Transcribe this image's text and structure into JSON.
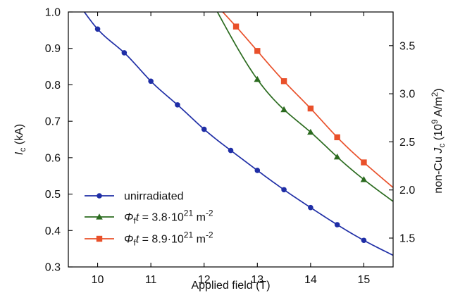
{
  "chart_data": {
    "type": "line",
    "x_axis": {
      "label": "Applied field (T)",
      "range": [
        9.45,
        15.55
      ],
      "ticks": [
        10,
        11,
        12,
        13,
        14,
        15
      ]
    },
    "y_left_axis": {
      "label_parts": {
        "base": "I",
        "sub": "c",
        "suffix": " (kA)"
      },
      "range": [
        0.3,
        1.0
      ],
      "ticks": [
        0.3,
        0.4,
        0.5,
        0.6,
        0.7,
        0.8,
        0.9,
        1.0
      ],
      "tick_labels": [
        "0.3",
        "0.4",
        "0.5",
        "0.6",
        "0.7",
        "0.8",
        "0.9",
        "1.0"
      ]
    },
    "y_right_axis": {
      "label_parts": {
        "prefix": "non-Cu ",
        "base": "J",
        "sub": "c",
        "unit_pre": " (10",
        "unit_sup": "9",
        "unit_mid": " A/m",
        "unit_sup2": "2",
        "unit_post": ")"
      },
      "range": [
        1.2,
        3.85
      ],
      "ticks": [
        1.5,
        2.0,
        2.5,
        3.0,
        3.5
      ],
      "tick_labels": [
        "1.5",
        "2.0",
        "2.5",
        "3.0",
        "3.5"
      ]
    },
    "series": [
      {
        "name": "unirradiated",
        "legend": {
          "base": "unirradiated"
        },
        "color": "#1f2ea6",
        "marker": "circle",
        "x": [
          10.0,
          10.5,
          11.0,
          11.5,
          12.0,
          12.5,
          13.0,
          13.5,
          14.0,
          14.5,
          15.0
        ],
        "y": [
          0.953,
          0.888,
          0.81,
          0.745,
          0.678,
          0.62,
          0.565,
          0.512,
          0.463,
          0.416,
          0.373
        ],
        "fit": {
          "x_start": 9.75,
          "x_end": 15.55,
          "y_start": 1.0,
          "y_end": 0.332
        }
      },
      {
        "name": "Φft = 3.8·10^21 m^-2",
        "legend": {
          "phi": "Φ",
          "phi_sub": "f",
          "t": "t",
          "eq": " = 3.8·10",
          "exp": "21",
          "unit": " m",
          "unit_exp": "-2"
        },
        "color": "#2b6b1f",
        "marker": "triangle",
        "x": [
          13.0,
          13.5,
          14.0,
          14.5,
          15.0
        ],
        "y": [
          0.815,
          0.732,
          0.67,
          0.602,
          0.54
        ],
        "fit": {
          "x_start": 12.25,
          "x_end": 15.55,
          "y_start": 1.0,
          "y_end": 0.48
        }
      },
      {
        "name": "Φft = 8.9·10^21 m^-2",
        "legend": {
          "phi": "Φ",
          "phi_sub": "f",
          "t": "t",
          "eq": " = 8.9·10",
          "exp": "21",
          "unit": " m",
          "unit_exp": "-2"
        },
        "color": "#e9502a",
        "marker": "square",
        "x": [
          12.6,
          13.0,
          13.5,
          14.0,
          14.5,
          15.0
        ],
        "y": [
          0.96,
          0.893,
          0.81,
          0.735,
          0.656,
          0.587
        ],
        "fit": {
          "x_start": 12.35,
          "x_end": 15.55,
          "y_start": 1.0,
          "y_end": 0.518
        }
      }
    ],
    "legend_position": "lower-left",
    "grid": false
  }
}
